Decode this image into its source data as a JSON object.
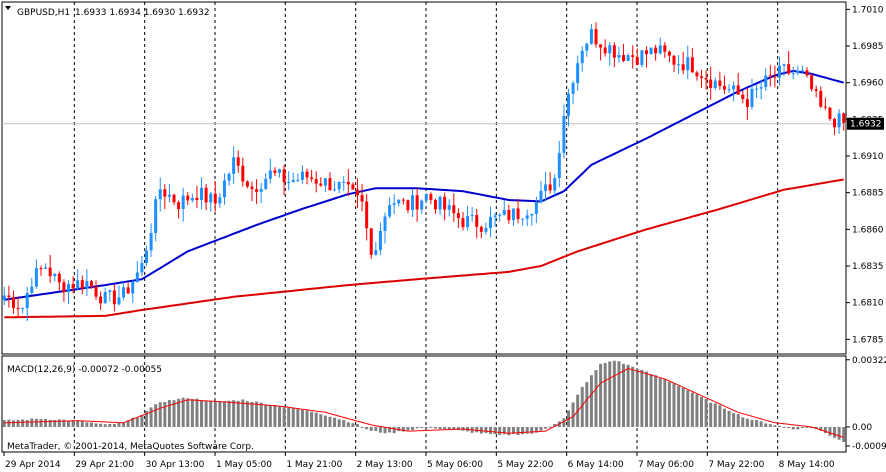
{
  "header": {
    "symbol": "GBPUSD,H1",
    "ohlc": "1.6933 1.6934 1.6930 1.6932",
    "macd_label": "MACD(12,26,9) -0.00072 -0.00055",
    "copyright": "MetaTrader, © 2001-2014, MetaQuotes Software Corp."
  },
  "colors": {
    "bull": "#1e90ff",
    "bear": "#ff0000",
    "ma_fast": "#0000cd",
    "ma_slow": "#dd0000",
    "histogram": "#808080",
    "signal": "#ff0000",
    "price_tag_bg": "#000000",
    "grid": "#000000",
    "price_line": "#c0c0c0"
  },
  "chart_data": [
    {
      "type": "candlestick",
      "title": "GBPUSD,H1",
      "ylim": [
        1.6775,
        1.7015
      ],
      "y_ticks": [
        "1.7010",
        "1.6985",
        "1.6960",
        "1.6935",
        "1.6910",
        "1.6885",
        "1.6860",
        "1.6835",
        "1.6810",
        "1.6785"
      ],
      "current_price": "1.6932",
      "x_labels": [
        "29 Apr 2014",
        "29 Apr 21:00",
        "30 Apr 13:00",
        "1 May 05:00",
        "1 May 21:00",
        "2 May 13:00",
        "5 May 06:00",
        "5 May 22:00",
        "6 May 14:00",
        "7 May 06:00",
        "7 May 22:00",
        "8 May 14:00"
      ],
      "anchors": [
        [
          0,
          1.6815
        ],
        [
          4,
          1.6807
        ],
        [
          6,
          1.6826
        ],
        [
          9,
          1.6835
        ],
        [
          12,
          1.6822
        ],
        [
          18,
          1.6824
        ],
        [
          22,
          1.6812
        ],
        [
          26,
          1.6815
        ],
        [
          30,
          1.6835
        ],
        [
          34,
          1.6888
        ],
        [
          38,
          1.6878
        ],
        [
          42,
          1.6885
        ],
        [
          46,
          1.6878
        ],
        [
          50,
          1.6906
        ],
        [
          54,
          1.6888
        ],
        [
          58,
          1.6898
        ],
        [
          62,
          1.6893
        ],
        [
          66,
          1.6896
        ],
        [
          70,
          1.6892
        ],
        [
          74,
          1.6888
        ],
        [
          78,
          1.6876
        ],
        [
          80,
          1.6842
        ],
        [
          84,
          1.688
        ],
        [
          88,
          1.6876
        ],
        [
          92,
          1.6883
        ],
        [
          96,
          1.6874
        ],
        [
          100,
          1.6866
        ],
        [
          104,
          1.6864
        ],
        [
          108,
          1.6868
        ],
        [
          112,
          1.6871
        ],
        [
          116,
          1.6878
        ],
        [
          120,
          1.6895
        ],
        [
          122,
          1.694
        ],
        [
          124,
          1.6965
        ],
        [
          126,
          1.6985
        ],
        [
          128,
          1.6993
        ],
        [
          130,
          1.6988
        ],
        [
          134,
          1.698
        ],
        [
          138,
          1.6978
        ],
        [
          142,
          1.6982
        ],
        [
          146,
          1.6975
        ],
        [
          150,
          1.6972
        ],
        [
          154,
          1.6962
        ],
        [
          158,
          1.6955
        ],
        [
          162,
          1.6948
        ],
        [
          166,
          1.696
        ],
        [
          170,
          1.6968
        ],
        [
          174,
          1.6965
        ],
        [
          176,
          1.6955
        ],
        [
          178,
          1.6942
        ],
        [
          180,
          1.6936
        ],
        [
          183,
          1.6932
        ]
      ],
      "ma_fast": [
        [
          0,
          1.6812
        ],
        [
          22,
          1.6822
        ],
        [
          30,
          1.6826
        ],
        [
          40,
          1.6845
        ],
        [
          55,
          1.6863
        ],
        [
          65,
          1.6874
        ],
        [
          75,
          1.6884
        ],
        [
          81,
          1.6888
        ],
        [
          90,
          1.6888
        ],
        [
          100,
          1.6886
        ],
        [
          110,
          1.688
        ],
        [
          117,
          1.6879
        ],
        [
          122,
          1.6886
        ],
        [
          128,
          1.6904
        ],
        [
          140,
          1.6922
        ],
        [
          150,
          1.6938
        ],
        [
          160,
          1.6954
        ],
        [
          168,
          1.6965
        ],
        [
          172,
          1.6968
        ],
        [
          176,
          1.6966
        ],
        [
          183,
          1.696
        ]
      ],
      "ma_slow": [
        [
          0,
          1.68
        ],
        [
          22,
          1.6801
        ],
        [
          30,
          1.6805
        ],
        [
          50,
          1.6814
        ],
        [
          75,
          1.6822
        ],
        [
          90,
          1.6826
        ],
        [
          110,
          1.6831
        ],
        [
          117,
          1.6835
        ],
        [
          125,
          1.6845
        ],
        [
          140,
          1.686
        ],
        [
          155,
          1.6873
        ],
        [
          170,
          1.6887
        ],
        [
          183,
          1.6894
        ]
      ]
    },
    {
      "type": "macd",
      "title": "MACD(12,26,9) -0.00072 -0.00055",
      "ylim": [
        -0.0012,
        0.0034
      ],
      "y_ticks": [
        "0.00322",
        "0.00",
        "-0.00091"
      ],
      "macd_anchors": [
        [
          0,
          0.0003
        ],
        [
          8,
          0.0004
        ],
        [
          16,
          0.0003
        ],
        [
          22,
          0.0001
        ],
        [
          26,
          0.0002
        ],
        [
          30,
          0.0006
        ],
        [
          34,
          0.0012
        ],
        [
          40,
          0.0014
        ],
        [
          46,
          0.0012
        ],
        [
          52,
          0.0013
        ],
        [
          60,
          0.001
        ],
        [
          68,
          0.0007
        ],
        [
          76,
          0.0002
        ],
        [
          80,
          -0.0002
        ],
        [
          84,
          -0.0003
        ],
        [
          92,
          0.0
        ],
        [
          100,
          -0.0002
        ],
        [
          108,
          -0.0004
        ],
        [
          116,
          -0.0003
        ],
        [
          122,
          0.0004
        ],
        [
          126,
          0.0019
        ],
        [
          130,
          0.003
        ],
        [
          133,
          0.0032
        ],
        [
          138,
          0.0028
        ],
        [
          146,
          0.0021
        ],
        [
          154,
          0.0012
        ],
        [
          162,
          0.0004
        ],
        [
          168,
          0.0001
        ],
        [
          172,
          -0.0001
        ],
        [
          176,
          0.0
        ],
        [
          183,
          -0.0007
        ]
      ],
      "signal_anchors": [
        [
          0,
          0.0002
        ],
        [
          16,
          0.0003
        ],
        [
          26,
          0.0002
        ],
        [
          34,
          0.0009
        ],
        [
          40,
          0.0013
        ],
        [
          48,
          0.0012
        ],
        [
          60,
          0.001
        ],
        [
          70,
          0.0007
        ],
        [
          80,
          0.0001
        ],
        [
          88,
          -0.0002
        ],
        [
          100,
          -0.0001
        ],
        [
          110,
          -0.0003
        ],
        [
          118,
          -0.0002
        ],
        [
          124,
          0.0005
        ],
        [
          130,
          0.0021
        ],
        [
          136,
          0.0028
        ],
        [
          144,
          0.0023
        ],
        [
          152,
          0.0015
        ],
        [
          160,
          0.0007
        ],
        [
          168,
          0.0002
        ],
        [
          176,
          0.0
        ],
        [
          183,
          -0.0005
        ]
      ]
    }
  ]
}
